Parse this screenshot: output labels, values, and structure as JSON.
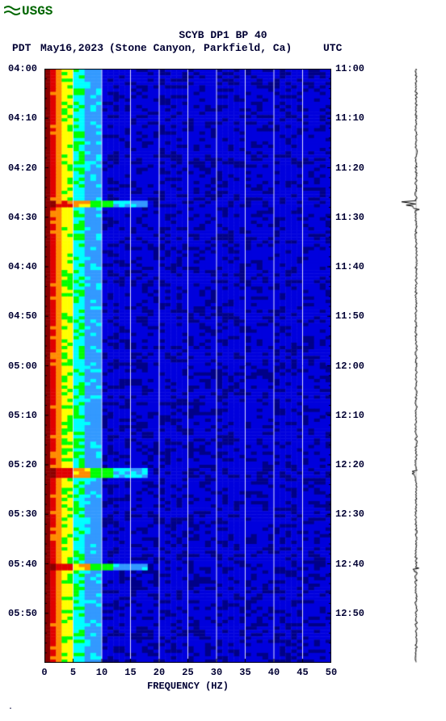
{
  "logo_text": "USGS",
  "title": "SCYB DP1 BP 40",
  "tz_left": "PDT",
  "date": "May16,2023",
  "location": "(Stone Canyon, Parkfield, Ca)",
  "tz_right": "UTC",
  "x_axis": {
    "title": "FREQUENCY (HZ)",
    "min": 0,
    "max": 50,
    "ticks": [
      0,
      5,
      10,
      15,
      20,
      25,
      30,
      35,
      40,
      45,
      50
    ],
    "label_fontsize": 12,
    "title_fontsize": 12
  },
  "y_axis_left": {
    "ticks": [
      "04:00",
      "04:10",
      "04:20",
      "04:30",
      "04:40",
      "04:50",
      "05:00",
      "05:10",
      "05:20",
      "05:30",
      "05:40",
      "05:50"
    ]
  },
  "y_axis_right": {
    "ticks": [
      "11:00",
      "11:10",
      "11:20",
      "11:30",
      "11:40",
      "11:50",
      "12:00",
      "12:10",
      "12:20",
      "12:30",
      "12:40",
      "12:50"
    ]
  },
  "spectrogram": {
    "type": "heatmap",
    "width_cells": 50,
    "height_rows": 180,
    "colors": {
      "dark_red": "#8b0000",
      "red": "#e00000",
      "orange": "#ff8c00",
      "yellow": "#ffff00",
      "green": "#00ff00",
      "cyan": "#00ffff",
      "lblue": "#3399ff",
      "blue": "#0000dd",
      "dblue": "#000088"
    },
    "gridline_color": "#ddddff",
    "grid_x": [
      5,
      10,
      15,
      20,
      25,
      30,
      35,
      40,
      45
    ],
    "background_color": "#ffffff",
    "event_rows": [
      40,
      41,
      121,
      122,
      123,
      150,
      151
    ],
    "noise_jitter": 0.6
  },
  "seismogram": {
    "type": "waveform",
    "line_color": "#000000",
    "line_width": 1,
    "baseline_amp": 1.5,
    "events": [
      {
        "row": 40,
        "amp": 20
      },
      {
        "row": 41,
        "amp": 14
      },
      {
        "row": 122,
        "amp": 6
      },
      {
        "row": 151,
        "amp": 5
      }
    ]
  },
  "text_color": "#000033",
  "logo_color": "#006600"
}
